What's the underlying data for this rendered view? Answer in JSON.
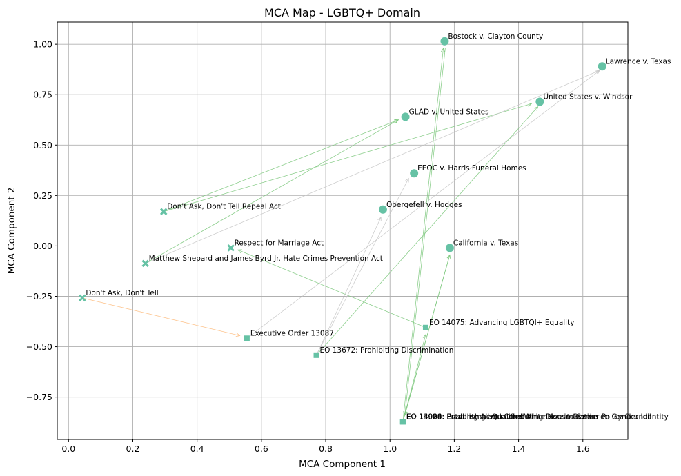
{
  "chart_data": {
    "type": "scatter",
    "title": "MCA Map - LGBTQ+ Domain",
    "xlabel": "MCA Component 1",
    "ylabel": "MCA Component 2",
    "xlim": [
      -0.035,
      1.74
    ],
    "ylim": [
      -0.96,
      1.11
    ],
    "xticks": [
      0.0,
      0.2,
      0.4,
      0.6,
      0.8,
      1.0,
      1.2,
      1.4,
      1.6
    ],
    "xtick_labels": [
      "0.0",
      "0.2",
      "0.4",
      "0.6",
      "0.8",
      "1.0",
      "1.2",
      "1.4",
      "1.6"
    ],
    "yticks": [
      -0.75,
      -0.5,
      -0.25,
      0.0,
      0.25,
      0.5,
      0.75,
      1.0
    ],
    "ytick_labels": [
      "−0.75",
      "−0.50",
      "−0.25",
      "0.00",
      "0.25",
      "0.50",
      "0.75",
      "1.00"
    ],
    "grid": true,
    "marker_color": "#66c2a5",
    "points": [
      {
        "label": "Bostock v. Clayton County",
        "x": 1.17,
        "y": 1.015,
        "marker": "circle"
      },
      {
        "label": "Lawrence v. Texas",
        "x": 1.66,
        "y": 0.89,
        "marker": "circle"
      },
      {
        "label": "United States v. Windsor",
        "x": 1.466,
        "y": 0.715,
        "marker": "circle"
      },
      {
        "label": "GLAD v. United States",
        "x": 1.048,
        "y": 0.64,
        "marker": "circle"
      },
      {
        "label": "EEOC v. Harris Funeral Homes",
        "x": 1.075,
        "y": 0.36,
        "marker": "circle"
      },
      {
        "label": "Obergefell v. Hodges",
        "x": 0.978,
        "y": 0.18,
        "marker": "circle"
      },
      {
        "label": "California v. Texas",
        "x": 1.186,
        "y": -0.01,
        "marker": "circle"
      },
      {
        "label": "Don't Ask, Don't Tell Repeal Act",
        "x": 0.296,
        "y": 0.17,
        "marker": "x"
      },
      {
        "label": "Respect for Marriage Act",
        "x": 0.505,
        "y": -0.01,
        "marker": "x"
      },
      {
        "label": "Matthew Shepard and James Byrd Jr. Hate Crimes Prevention Act",
        "x": 0.239,
        "y": -0.087,
        "marker": "x"
      },
      {
        "label": "Don't Ask, Don't Tell",
        "x": 0.043,
        "y": -0.258,
        "marker": "x"
      },
      {
        "label": "Executive Order 13087",
        "x": 0.555,
        "y": -0.458,
        "marker": "square"
      },
      {
        "label": "EO 14075: Advancing LGBTQI+ Equality",
        "x": 1.111,
        "y": -0.405,
        "marker": "square"
      },
      {
        "label": "EO 13672: Prohibiting Discrimination",
        "x": 0.771,
        "y": -0.542,
        "marker": "square"
      },
      {
        "label": "EO 13988: Preventing and Combating Discrimination on Gender Identity",
        "x": 1.04,
        "y": -0.872,
        "marker": "square"
      },
      {
        "label": "EO 14004: Enabling All Qualified Americans to Serve",
        "x": 1.04,
        "y": -0.872,
        "marker": "square"
      },
      {
        "label": "EO 14020: Establishment of the White House Gender Policy Council",
        "x": 1.04,
        "y": -0.872,
        "marker": "square"
      }
    ],
    "arrows": [
      {
        "from": [
          0.296,
          0.17
        ],
        "to": [
          1.026,
          0.625
        ],
        "color": "#7fc97f"
      },
      {
        "from": [
          0.296,
          0.17
        ],
        "to": [
          1.44,
          0.705
        ],
        "color": "#7fc97f"
      },
      {
        "from": [
          0.239,
          -0.087
        ],
        "to": [
          1.652,
          0.87
        ],
        "color": "#c8c8c8"
      },
      {
        "from": [
          0.239,
          -0.087
        ],
        "to": [
          1.026,
          0.625
        ],
        "color": "#7fc97f"
      },
      {
        "from": [
          0.043,
          -0.258
        ],
        "to": [
          0.533,
          -0.445
        ],
        "color": "#fdc086"
      },
      {
        "from": [
          0.555,
          -0.458
        ],
        "to": [
          1.652,
          0.87
        ],
        "color": "#c8c8c8"
      },
      {
        "from": [
          1.111,
          -0.405
        ],
        "to": [
          0.527,
          -0.02
        ],
        "color": "#7fc97f"
      },
      {
        "from": [
          0.771,
          -0.542
        ],
        "to": [
          1.058,
          0.335
        ],
        "color": "#c8c8c8"
      },
      {
        "from": [
          0.771,
          -0.542
        ],
        "to": [
          0.972,
          0.142
        ],
        "color": "#c8c8c8"
      },
      {
        "from": [
          0.771,
          -0.542
        ],
        "to": [
          1.46,
          0.69
        ],
        "color": "#7fc97f"
      },
      {
        "from": [
          1.04,
          -0.872
        ],
        "to": [
          1.166,
          0.98
        ],
        "color": "#7fc97f"
      },
      {
        "from": [
          1.04,
          -0.872
        ],
        "to": [
          1.186,
          -0.045
        ],
        "color": "#7fc97f"
      },
      {
        "from": [
          1.04,
          -0.872
        ],
        "to": [
          1.111,
          -0.44
        ],
        "color": "#7fc97f"
      },
      {
        "from": [
          1.172,
          0.98
        ],
        "to": [
          1.046,
          -0.84
        ],
        "color": "#7fc97f"
      },
      {
        "from": [
          1.186,
          -0.045
        ],
        "to": [
          1.046,
          -0.84
        ],
        "color": "#7fc97f"
      }
    ]
  }
}
